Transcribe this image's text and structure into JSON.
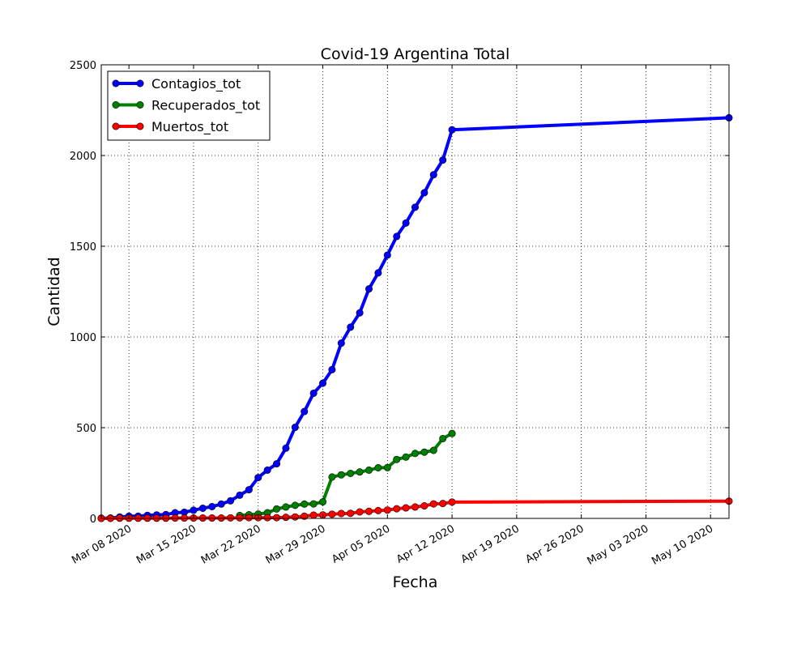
{
  "chart_data": {
    "type": "line",
    "title": "Covid-19 Argentina Total",
    "xlabel": "Fecha",
    "ylabel": "Cantidad",
    "ylim": [
      0,
      2500
    ],
    "y_ticks": [
      0,
      500,
      1000,
      1500,
      2000,
      2500
    ],
    "xlim": [
      "2020-03-05",
      "2020-05-12"
    ],
    "x_ticks": [
      "2020-03-08",
      "2020-03-15",
      "2020-03-22",
      "2020-03-29",
      "2020-04-05",
      "2020-04-12",
      "2020-04-19",
      "2020-04-26",
      "2020-05-03",
      "2020-05-10"
    ],
    "x_tick_labels": [
      "Mar 08 2020",
      "Mar 15 2020",
      "Mar 22 2020",
      "Mar 29 2020",
      "Apr 05 2020",
      "Apr 12 2020",
      "Apr 19 2020",
      "Apr 26 2020",
      "May 03 2020",
      "May 10 2020"
    ],
    "grid": true,
    "legend_position": "top-left",
    "series": [
      {
        "name": "Contagios_tot",
        "color": "#0000ff",
        "points": [
          [
            "2020-03-05",
            1
          ],
          [
            "2020-03-06",
            2
          ],
          [
            "2020-03-07",
            8
          ],
          [
            "2020-03-08",
            12
          ],
          [
            "2020-03-09",
            12
          ],
          [
            "2020-03-10",
            17
          ],
          [
            "2020-03-11",
            19
          ],
          [
            "2020-03-12",
            21
          ],
          [
            "2020-03-13",
            31
          ],
          [
            "2020-03-14",
            34
          ],
          [
            "2020-03-15",
            45
          ],
          [
            "2020-03-16",
            56
          ],
          [
            "2020-03-17",
            65
          ],
          [
            "2020-03-18",
            79
          ],
          [
            "2020-03-19",
            97
          ],
          [
            "2020-03-20",
            128
          ],
          [
            "2020-03-21",
            158
          ],
          [
            "2020-03-22",
            225
          ],
          [
            "2020-03-23",
            266
          ],
          [
            "2020-03-24",
            301
          ],
          [
            "2020-03-25",
            387
          ],
          [
            "2020-03-26",
            502
          ],
          [
            "2020-03-27",
            589
          ],
          [
            "2020-03-28",
            690
          ],
          [
            "2020-03-29",
            745
          ],
          [
            "2020-03-30",
            820
          ],
          [
            "2020-03-31",
            966
          ],
          [
            "2020-04-01",
            1054
          ],
          [
            "2020-04-02",
            1133
          ],
          [
            "2020-04-03",
            1265
          ],
          [
            "2020-04-04",
            1353
          ],
          [
            "2020-04-05",
            1451
          ],
          [
            "2020-04-06",
            1554
          ],
          [
            "2020-04-07",
            1628
          ],
          [
            "2020-04-08",
            1715
          ],
          [
            "2020-04-09",
            1795
          ],
          [
            "2020-04-10",
            1894
          ],
          [
            "2020-04-11",
            1975
          ],
          [
            "2020-04-12",
            2142
          ],
          [
            "2020-05-12",
            2208
          ]
        ]
      },
      {
        "name": "Recuperados_tot",
        "color": "#008000",
        "points": [
          [
            "2020-03-20",
            16
          ],
          [
            "2020-03-21",
            20
          ],
          [
            "2020-03-22",
            24
          ],
          [
            "2020-03-23",
            31
          ],
          [
            "2020-03-24",
            52
          ],
          [
            "2020-03-25",
            63
          ],
          [
            "2020-03-26",
            72
          ],
          [
            "2020-03-27",
            79
          ],
          [
            "2020-03-28",
            80
          ],
          [
            "2020-03-29",
            91
          ],
          [
            "2020-03-30",
            228
          ],
          [
            "2020-03-31",
            240
          ],
          [
            "2020-04-01",
            248
          ],
          [
            "2020-04-02",
            256
          ],
          [
            "2020-04-03",
            266
          ],
          [
            "2020-04-04",
            279
          ],
          [
            "2020-04-05",
            280
          ],
          [
            "2020-04-06",
            325
          ],
          [
            "2020-04-07",
            338
          ],
          [
            "2020-04-08",
            358
          ],
          [
            "2020-04-09",
            365
          ],
          [
            "2020-04-10",
            375
          ],
          [
            "2020-04-11",
            440
          ],
          [
            "2020-04-12",
            468
          ]
        ]
      },
      {
        "name": "Muertos_tot",
        "color": "#ff0000",
        "points": [
          [
            "2020-03-05",
            0
          ],
          [
            "2020-03-06",
            0
          ],
          [
            "2020-03-07",
            1
          ],
          [
            "2020-03-08",
            1
          ],
          [
            "2020-03-09",
            1
          ],
          [
            "2020-03-10",
            1
          ],
          [
            "2020-03-11",
            1
          ],
          [
            "2020-03-12",
            1
          ],
          [
            "2020-03-13",
            2
          ],
          [
            "2020-03-14",
            2
          ],
          [
            "2020-03-15",
            2
          ],
          [
            "2020-03-16",
            2
          ],
          [
            "2020-03-17",
            2
          ],
          [
            "2020-03-18",
            2
          ],
          [
            "2020-03-19",
            3
          ],
          [
            "2020-03-20",
            3
          ],
          [
            "2020-03-21",
            4
          ],
          [
            "2020-03-22",
            4
          ],
          [
            "2020-03-23",
            4
          ],
          [
            "2020-03-24",
            4
          ],
          [
            "2020-03-25",
            6
          ],
          [
            "2020-03-26",
            8
          ],
          [
            "2020-03-27",
            12
          ],
          [
            "2020-03-28",
            18
          ],
          [
            "2020-03-29",
            19
          ],
          [
            "2020-03-30",
            23
          ],
          [
            "2020-03-31",
            27
          ],
          [
            "2020-04-01",
            28
          ],
          [
            "2020-04-02",
            36
          ],
          [
            "2020-04-03",
            39
          ],
          [
            "2020-04-04",
            43
          ],
          [
            "2020-04-05",
            46
          ],
          [
            "2020-04-06",
            53
          ],
          [
            "2020-04-07",
            58
          ],
          [
            "2020-04-08",
            63
          ],
          [
            "2020-04-09",
            69
          ],
          [
            "2020-04-10",
            80
          ],
          [
            "2020-04-11",
            82
          ],
          [
            "2020-04-12",
            90
          ],
          [
            "2020-05-12",
            95
          ]
        ]
      }
    ]
  }
}
